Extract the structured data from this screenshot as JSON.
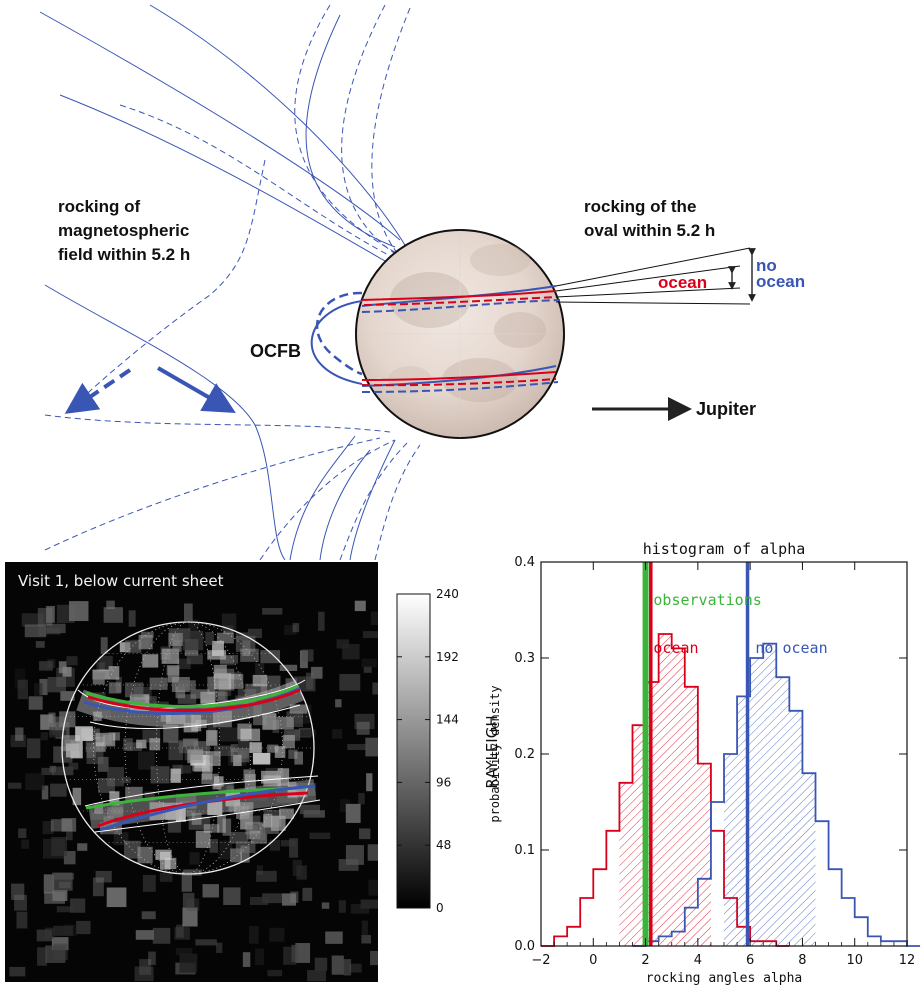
{
  "diagram": {
    "label_rocking_field": [
      "rocking of",
      "magnetospheric",
      "field within 5.2 h"
    ],
    "label_rocking_oval": [
      "rocking of the",
      "oval within 5.2 h"
    ],
    "label_ocean": "ocean",
    "label_no_ocean": [
      "no",
      "ocean"
    ],
    "label_ocfb": "OCFB",
    "label_jupiter": "Jupiter",
    "colors": {
      "field": "#3a56b5",
      "ocean": "#d9001b",
      "no_ocean": "#3a56b5",
      "obs": "#3cb43c"
    }
  },
  "image_panel": {
    "title": "Visit 1, below current sheet",
    "colorbar_ticks": [
      "0",
      "48",
      "96",
      "144",
      "192",
      "240"
    ],
    "colorbar_label": "RAYLEIGH"
  },
  "chart_data": {
    "type": "histogram",
    "title": "histogram of alpha",
    "xlabel": "rocking angles alpha",
    "ylabel": "probability density",
    "xlim": [
      -2,
      12
    ],
    "ylim": [
      0,
      0.4
    ],
    "xticks": [
      "−2",
      "0",
      "2",
      "4",
      "6",
      "8",
      "10",
      "12"
    ],
    "yticks": [
      "0.0",
      "0.1",
      "0.2",
      "0.3",
      "0.4"
    ],
    "bin_width": 0.5,
    "series": [
      {
        "name": "ocean",
        "color": "#d9001b",
        "bin_start": -2,
        "values": [
          0.0,
          0.01,
          0.02,
          0.05,
          0.08,
          0.12,
          0.17,
          0.23,
          0.275,
          0.325,
          0.31,
          0.27,
          0.19,
          0.12,
          0.05,
          0.02,
          0.005,
          0.005,
          0.0
        ]
      },
      {
        "name": "no ocean",
        "color": "#3a56b5",
        "bin_start": 1.5,
        "values": [
          0.0,
          0.005,
          0.01,
          0.015,
          0.04,
          0.07,
          0.15,
          0.2,
          0.26,
          0.3,
          0.315,
          0.28,
          0.245,
          0.18,
          0.13,
          0.08,
          0.05,
          0.03,
          0.01,
          0.005,
          0.005,
          0.0
        ]
      }
    ],
    "vertical_lines": [
      {
        "name": "observations",
        "x": 2.0,
        "color": "#3cb43c"
      },
      {
        "name": "ocean",
        "x": 2.2,
        "color": "#d9001b"
      },
      {
        "name": "no ocean",
        "x": 5.9,
        "color": "#3a56b5"
      }
    ],
    "labels": [
      "observations",
      "ocean",
      "no ocean"
    ]
  }
}
